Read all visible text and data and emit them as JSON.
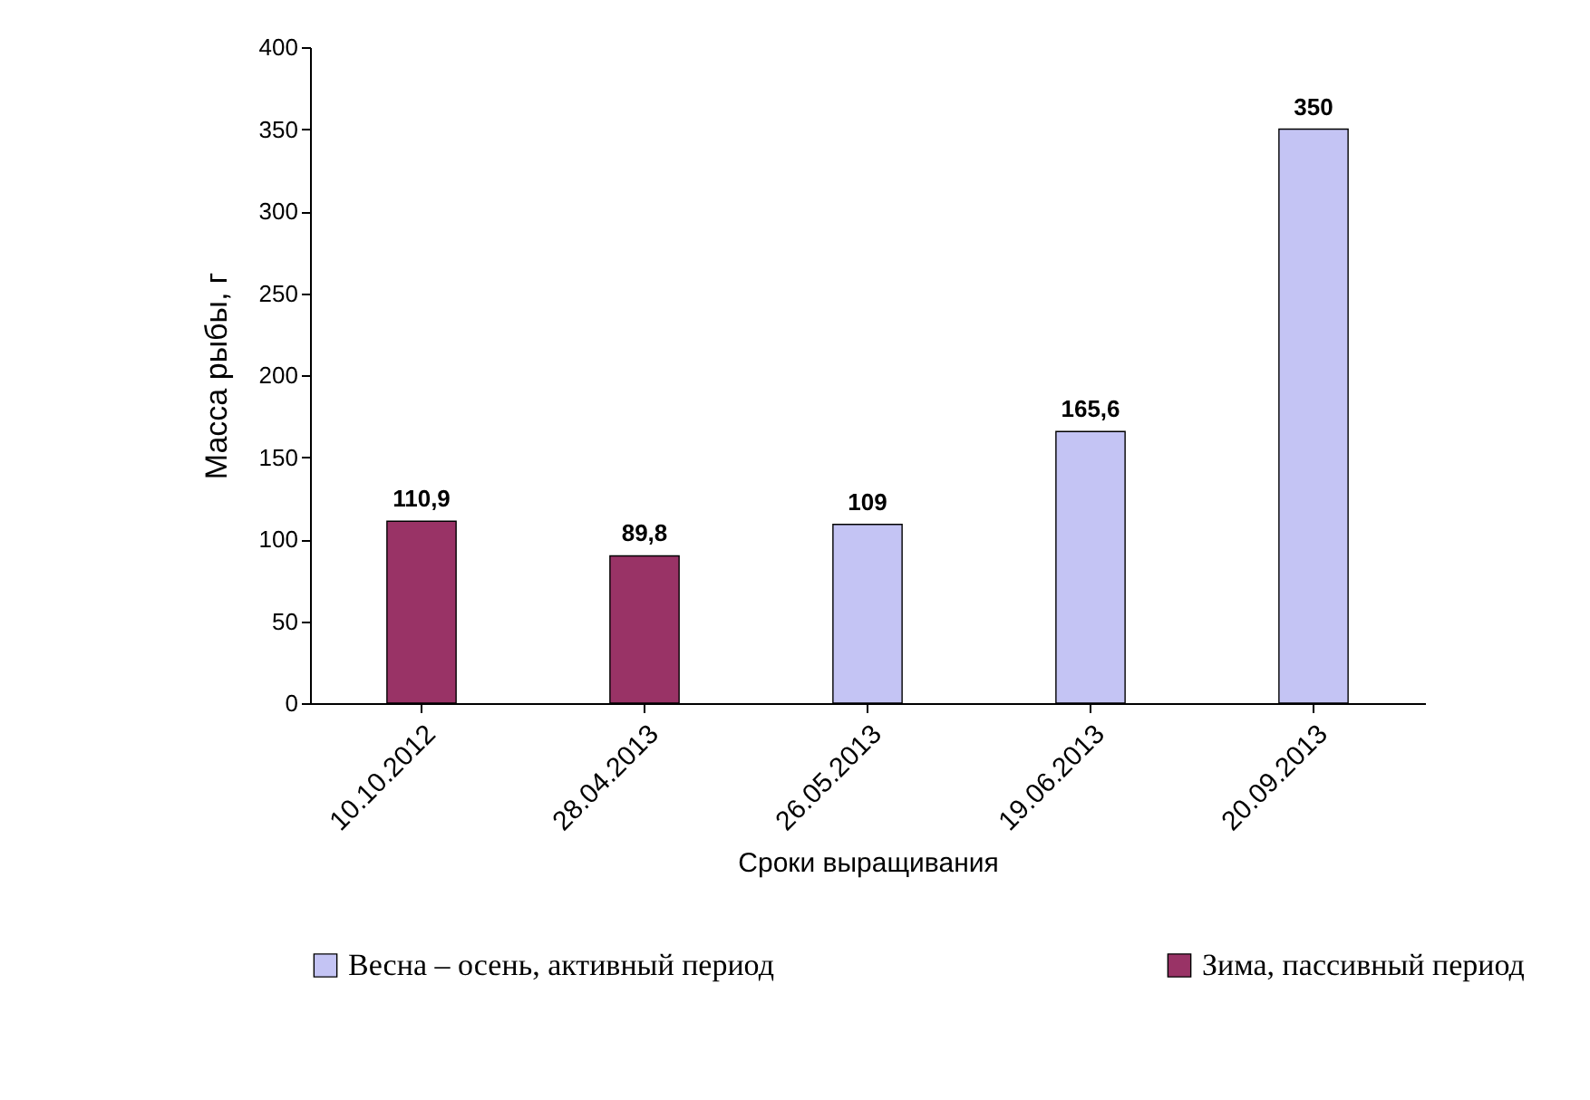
{
  "chart_data": {
    "type": "bar",
    "xlabel": "Сроки выращивания",
    "ylabel": "Масса рыбы, г",
    "categories": [
      "10.10.2012",
      "28.04.2013",
      "26.05.2013",
      "19.06.2013",
      "20.09.2013"
    ],
    "series": [
      {
        "name": "Весна – осень, активный период",
        "color": "#c4c4f4",
        "values": [
          null,
          null,
          109,
          165.6,
          350
        ],
        "value_labels": [
          null,
          null,
          "109",
          "165,6",
          "350"
        ]
      },
      {
        "name": "Зима, пассивный период",
        "color": "#993366",
        "values": [
          110.9,
          89.8,
          null,
          null,
          null
        ],
        "value_labels": [
          "110,9",
          "89,8",
          null,
          null,
          null
        ]
      }
    ],
    "ylim": [
      0,
      400
    ],
    "yticks": [
      0,
      50,
      100,
      150,
      200,
      250,
      300,
      350,
      400
    ],
    "grid": false,
    "legend": "bottom"
  }
}
